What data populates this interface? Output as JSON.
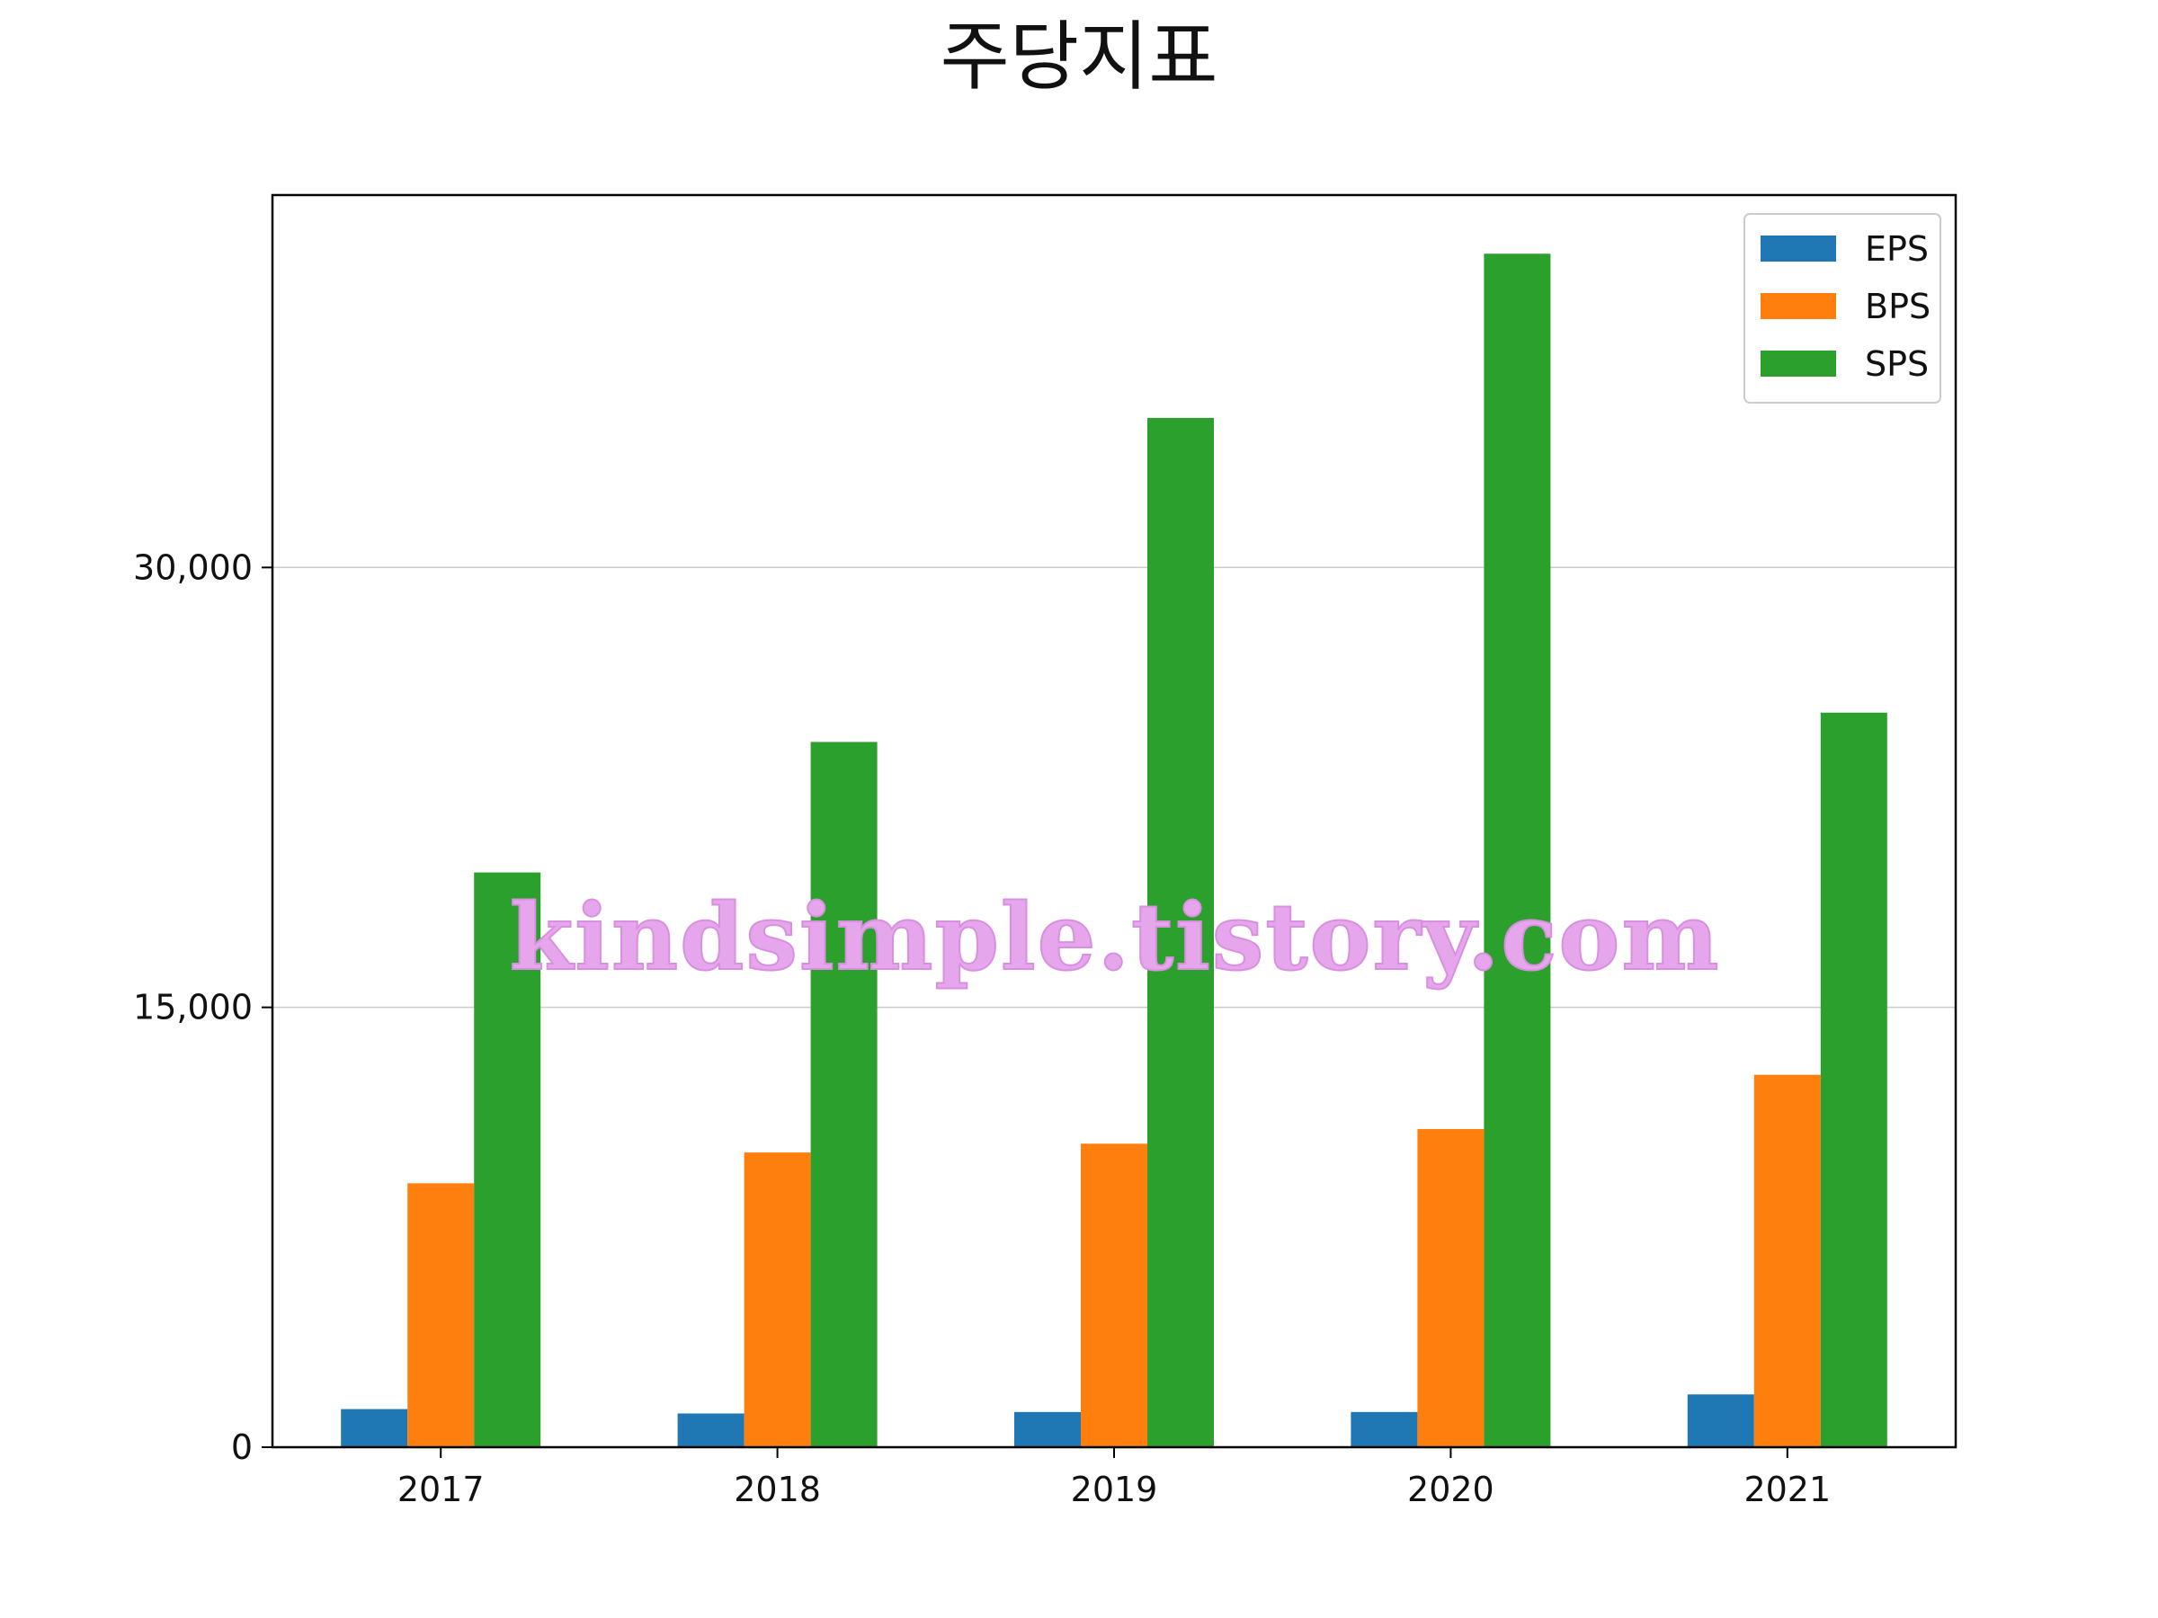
{
  "chart_data": {
    "type": "bar",
    "title": "주당지표",
    "xlabel": "",
    "ylabel": "",
    "categories": [
      "2017",
      "2018",
      "2019",
      "2020",
      "2021"
    ],
    "series": [
      {
        "name": "EPS",
        "color": "#1f77b4",
        "values": [
          1300,
          1150,
          1200,
          1200,
          1800
        ]
      },
      {
        "name": "BPS",
        "color": "#ff7f0e",
        "values": [
          9000,
          10050,
          10350,
          10850,
          12700
        ]
      },
      {
        "name": "SPS",
        "color": "#2ca02c",
        "values": [
          19600,
          24050,
          35100,
          40700,
          25050
        ]
      }
    ],
    "ylim": [
      0,
      42700
    ],
    "yticks": [
      0,
      15000,
      30000
    ],
    "ytick_labels": [
      "0",
      "15,000",
      "30,000"
    ],
    "grid": "horizontal",
    "legend_position": "top-right",
    "watermark": "kindsimple.tistory.com"
  }
}
